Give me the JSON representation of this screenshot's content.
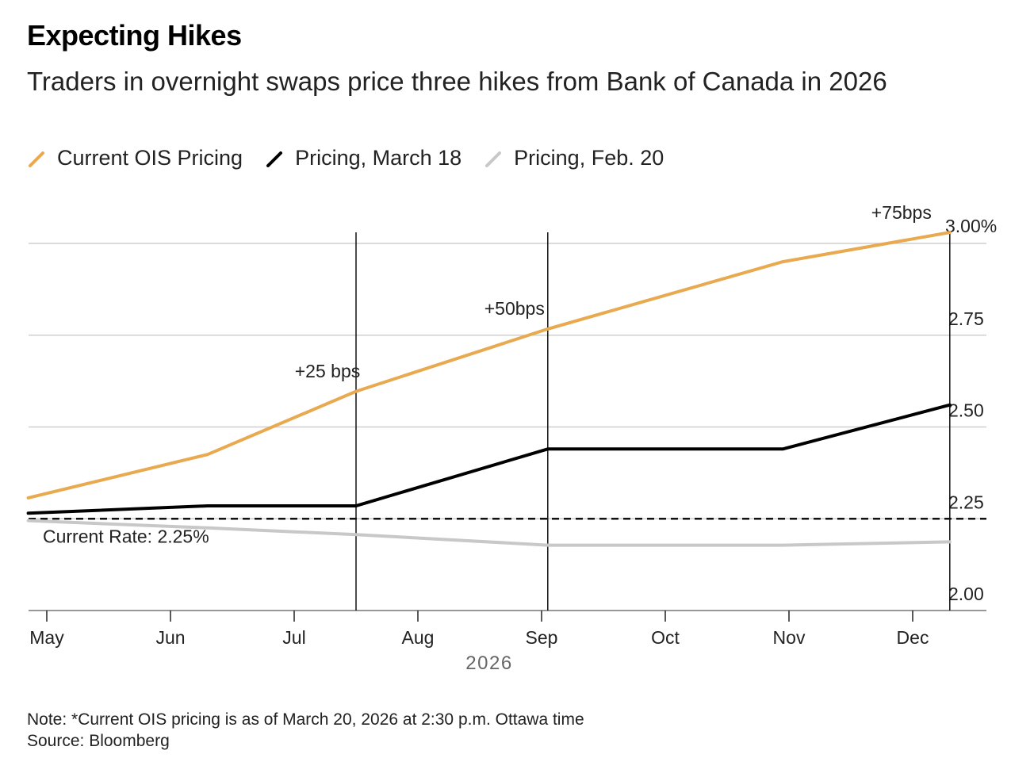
{
  "title": "Expecting Hikes",
  "subtitle": "Traders in overnight swaps price three hikes from Bank of Canada in 2026",
  "legend": [
    {
      "label": "Current OIS Pricing",
      "color": "#E8A94F"
    },
    {
      "label": "Pricing, March 18",
      "color": "#000000"
    },
    {
      "label": "Pricing, Feb. 20",
      "color": "#C8C8C8"
    }
  ],
  "chart_data": {
    "type": "line",
    "xlabel": "2026",
    "ylabel": "",
    "xlim": [
      0,
      7.3
    ],
    "ylim": [
      2.0,
      3.0
    ],
    "x_ticks": [
      {
        "label": "May",
        "x": 0
      },
      {
        "label": "Jun",
        "x": 1
      },
      {
        "label": "Jul",
        "x": 2
      },
      {
        "label": "Aug",
        "x": 3
      },
      {
        "label": "Sep",
        "x": 4
      },
      {
        "label": "Oct",
        "x": 5
      },
      {
        "label": "Nov",
        "x": 6
      },
      {
        "label": "Dec",
        "x": 7
      }
    ],
    "y_ticks": [
      {
        "label": "3.00%",
        "value": 3.0
      },
      {
        "label": "2.75",
        "value": 2.75
      },
      {
        "label": "2.50",
        "value": 2.5
      },
      {
        "label": "2.25",
        "value": 2.25
      },
      {
        "label": "2.00",
        "value": 2.0
      }
    ],
    "series": [
      {
        "name": "Current OIS Pricing",
        "color": "#E8A94F",
        "x": [
          -0.15,
          1.3,
          2.5,
          4.05,
          5.95,
          7.3
        ],
        "values": [
          2.307,
          2.425,
          2.597,
          2.767,
          2.95,
          3.03
        ]
      },
      {
        "name": "Pricing, March 18",
        "color": "#000000",
        "x": [
          -0.15,
          1.3,
          2.5,
          4.05,
          5.95,
          7.3
        ],
        "values": [
          2.265,
          2.285,
          2.285,
          2.44,
          2.44,
          2.56
        ]
      },
      {
        "name": "Pricing, Feb. 20",
        "color": "#C8C8C8",
        "x": [
          -0.15,
          1.3,
          2.5,
          4.05,
          5.95,
          7.3
        ],
        "values": [
          2.245,
          2.225,
          2.207,
          2.178,
          2.178,
          2.187
        ]
      }
    ],
    "reference_line": {
      "label": "Current Rate: 2.25%",
      "value": 2.25
    },
    "meeting_lines": [
      {
        "x": 2.5,
        "annotation": "+25 bps"
      },
      {
        "x": 4.05,
        "annotation": "+50bps"
      },
      {
        "x": 7.3,
        "annotation": "+75bps"
      }
    ]
  },
  "footer": {
    "note": "Note: *Current OIS pricing is as of March 20, 2026 at 2:30 p.m. Ottawa time",
    "source": "Source: Bloomberg"
  }
}
